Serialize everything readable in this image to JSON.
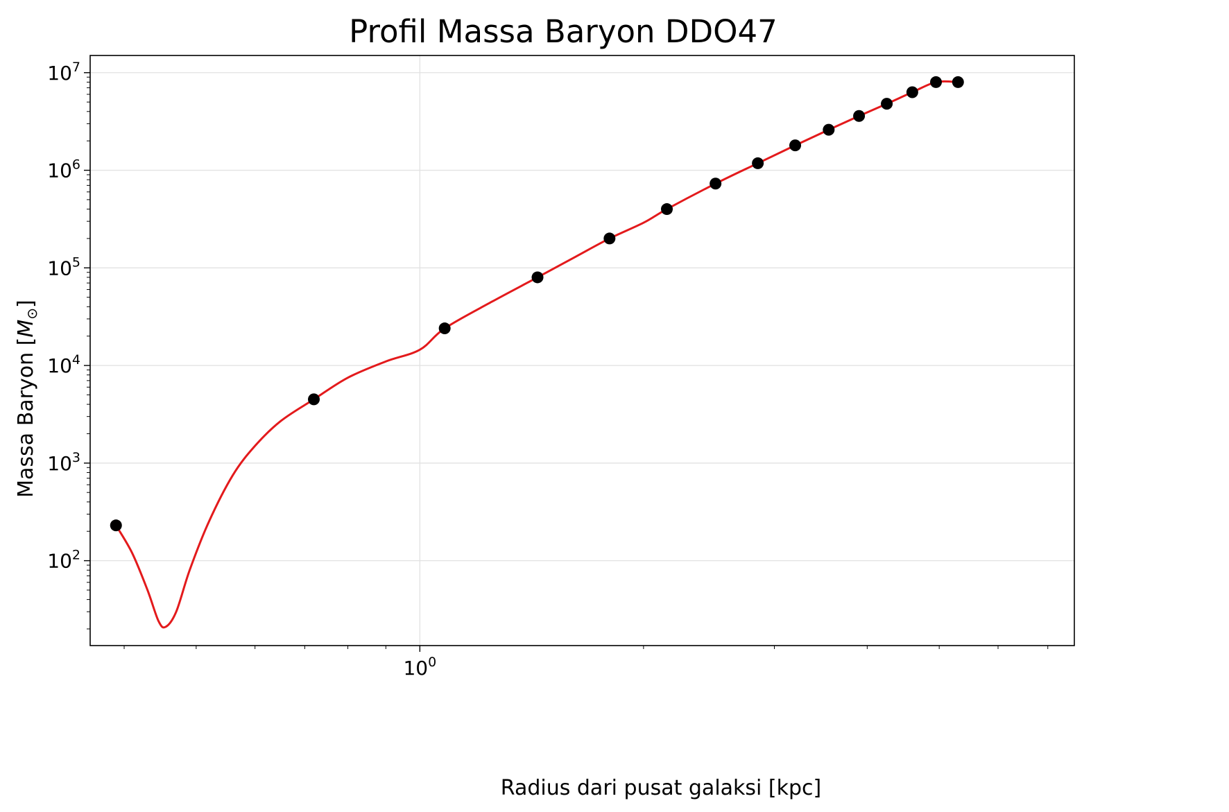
{
  "chart_data": {
    "type": "line",
    "title": "Profil Massa Baryon DDO47",
    "xlabel": "Radius dari pusat galaksi [kpc]",
    "ylabel_text": "Massa Baryon [",
    "ylabel_symbol": "M",
    "ylabel_subscript": "⊙",
    "ylabel_close": "]",
    "xscale": "log",
    "yscale": "log",
    "xlim": [
      0.36,
      7.6
    ],
    "ylim": [
      13.5,
      15000000
    ],
    "grid": true,
    "x_major_ticks": [
      {
        "base": "10",
        "exp": "0",
        "value": 1
      }
    ],
    "x_minor_ticks": [
      0.4,
      0.5,
      0.6,
      0.7,
      0.8,
      0.9,
      2,
      3,
      4,
      5,
      6,
      7
    ],
    "y_major_ticks": [
      {
        "base": "10",
        "exp": "2",
        "value": 100
      },
      {
        "base": "10",
        "exp": "3",
        "value": 1000
      },
      {
        "base": "10",
        "exp": "4",
        "value": 10000
      },
      {
        "base": "10",
        "exp": "5",
        "value": 100000
      },
      {
        "base": "10",
        "exp": "6",
        "value": 1000000
      },
      {
        "base": "10",
        "exp": "7",
        "value": 10000000
      }
    ],
    "series": [
      {
        "kind": "scatter",
        "color": "#000000",
        "x": [
          0.39,
          0.72,
          1.08,
          1.44,
          1.8,
          2.15,
          2.5,
          2.85,
          3.2,
          3.55,
          3.9,
          4.25,
          4.6,
          4.95,
          5.3
        ],
        "y": [
          230,
          4500,
          24000,
          80000,
          200000,
          400000,
          730000,
          1180000,
          1800000,
          2600000,
          3600000,
          4800000,
          6300000,
          8000000,
          8000000
        ]
      },
      {
        "kind": "line",
        "color": "#e31a1c",
        "x": [
          0.39,
          0.41,
          0.43,
          0.445,
          0.455,
          0.47,
          0.49,
          0.52,
          0.56,
          0.6,
          0.65,
          0.72,
          0.8,
          0.9,
          1.0,
          1.08,
          1.25,
          1.44,
          1.62,
          1.8,
          2.0,
          2.15,
          2.5,
          2.85,
          3.2,
          3.55,
          3.9,
          4.25,
          4.6,
          4.95,
          5.3
        ],
        "y": [
          230,
          120,
          50,
          24,
          21,
          30,
          80,
          250,
          750,
          1500,
          2700,
          4500,
          7500,
          11000,
          14500,
          24000,
          45000,
          80000,
          130000,
          200000,
          290000,
          400000,
          730000,
          1180000,
          1800000,
          2600000,
          3600000,
          4800000,
          6300000,
          8000000,
          8000000
        ]
      }
    ],
    "colors": {
      "grid": "#e2e2e2",
      "axes": "#000000",
      "line": "#e31a1c",
      "points": "#000000"
    }
  }
}
